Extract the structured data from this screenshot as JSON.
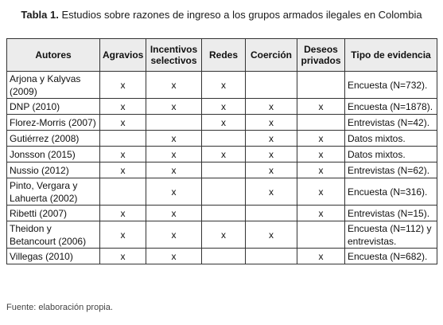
{
  "caption": {
    "label": "Tabla 1.",
    "text": "Estudios sobre razones de ingreso a los grupos armados ilegales en Colombia"
  },
  "table": {
    "headers": [
      "Autores",
      "Agravios",
      "Incentivos selectivos",
      "Redes",
      "Coerción",
      "Deseos privados",
      "Tipo de evidencia"
    ],
    "rows": [
      {
        "autor": "Arjona y Kalyvas (2009)",
        "agravios": "x",
        "incentivos": "x",
        "redes": "x",
        "coercion": "",
        "deseos": "",
        "evidencia": "Encuesta (N=732)."
      },
      {
        "autor": "DNP (2010)",
        "agravios": "x",
        "incentivos": "x",
        "redes": "x",
        "coercion": "x",
        "deseos": "x",
        "evidencia": "Encuesta (N=1878)."
      },
      {
        "autor": "Florez-Morris (2007)",
        "agravios": "x",
        "incentivos": "",
        "redes": "x",
        "coercion": "x",
        "deseos": "",
        "evidencia": "Entrevistas (N=42)."
      },
      {
        "autor": "Gutiérrez (2008)",
        "agravios": "",
        "incentivos": "x",
        "redes": "",
        "coercion": "x",
        "deseos": "x",
        "evidencia": "Datos mixtos."
      },
      {
        "autor": "Jonsson (2015)",
        "agravios": "x",
        "incentivos": "x",
        "redes": "x",
        "coercion": "x",
        "deseos": "x",
        "evidencia": "Datos mixtos."
      },
      {
        "autor": "Nussio (2012)",
        "agravios": "x",
        "incentivos": "x",
        "redes": "",
        "coercion": "x",
        "deseos": "x",
        "evidencia": "Entrevistas (N=62)."
      },
      {
        "autor": "Pinto, Vergara y Lahuerta (2002)",
        "agravios": "",
        "incentivos": "x",
        "redes": "",
        "coercion": "x",
        "deseos": "x",
        "evidencia": "Encuesta (N=316)."
      },
      {
        "autor": "Ribetti (2007)",
        "agravios": "x",
        "incentivos": "x",
        "redes": "",
        "coercion": "",
        "deseos": "x",
        "evidencia": "Entrevistas (N=15)."
      },
      {
        "autor": "Theidon y Betancourt (2006)",
        "agravios": "x",
        "incentivos": "x",
        "redes": "x",
        "coercion": "x",
        "deseos": "",
        "evidencia": "Encuesta (N=112) y entrevistas."
      },
      {
        "autor": "Villegas (2010)",
        "agravios": "x",
        "incentivos": "x",
        "redes": "",
        "coercion": "",
        "deseos": "x",
        "evidencia": "Encuesta (N=682)."
      }
    ]
  },
  "source": "Fuente: elaboración propia."
}
